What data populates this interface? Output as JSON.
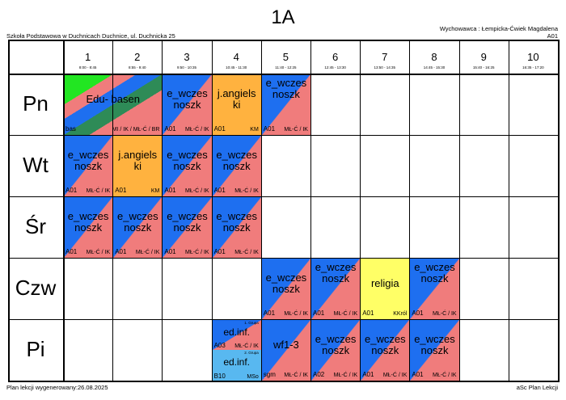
{
  "header": {
    "class_name": "1A",
    "school": "Szkoła Podstawowa w Duchnicach Duchnice, ul. Duchnicka 25",
    "teacher": "Wychowawca : Łempicka-Ćwiek Magdalena",
    "room": "A01"
  },
  "periods": [
    {
      "num": "1",
      "time": "8:00 - 8:45"
    },
    {
      "num": "2",
      "time": "8:55 - 9:40"
    },
    {
      "num": "3",
      "time": "9:50 - 10:35"
    },
    {
      "num": "4",
      "time": "10:45 - 11:30"
    },
    {
      "num": "5",
      "time": "11:40 - 12:25"
    },
    {
      "num": "6",
      "time": "12:45 - 13:30"
    },
    {
      "num": "7",
      "time": "13:50 - 14:35"
    },
    {
      "num": "8",
      "time": "14:45 - 15:30"
    },
    {
      "num": "9",
      "time": "15:40 - 16:25"
    },
    {
      "num": "10",
      "time": "16:35 - 17:20"
    }
  ],
  "days": [
    "Pn",
    "Wt",
    "Śr",
    "Czw",
    "Pi"
  ],
  "lessons": [
    {
      "day": 0,
      "period": 0,
      "span": 2,
      "subject": [
        "Edu- basen"
      ],
      "room": "bas",
      "teacher": "MI / IK / MŁ-Ć / BR",
      "style": "basen"
    },
    {
      "day": 0,
      "period": 2,
      "span": 1,
      "subject": [
        "e_wczes",
        "noszk"
      ],
      "room": "A01",
      "teacher": "MŁ-Ć / IK",
      "style": "ew"
    },
    {
      "day": 0,
      "period": 3,
      "span": 1,
      "subject": [
        "j.angiels",
        "ki"
      ],
      "room": "A01",
      "teacher": "KM",
      "style": "ang"
    },
    {
      "day": 0,
      "period": 4,
      "span": 1,
      "subject": [
        "e_wczes",
        "noszk"
      ],
      "room": "A01",
      "teacher": "MŁ-Ć / IK",
      "style": "ew",
      "top": true
    },
    {
      "day": 1,
      "period": 0,
      "span": 1,
      "subject": [
        "e_wczes",
        "noszk"
      ],
      "room": "A01",
      "teacher": "MŁ-Ć / IK",
      "style": "ew"
    },
    {
      "day": 1,
      "period": 1,
      "span": 1,
      "subject": [
        "j.angiels",
        "ki"
      ],
      "room": "A01",
      "teacher": "KM",
      "style": "ang"
    },
    {
      "day": 1,
      "period": 2,
      "span": 1,
      "subject": [
        "e_wczes",
        "noszk"
      ],
      "room": "A01",
      "teacher": "MŁ-Ć / IK",
      "style": "ew"
    },
    {
      "day": 1,
      "period": 3,
      "span": 1,
      "subject": [
        "e_wczes",
        "noszk"
      ],
      "room": "A01",
      "teacher": "MŁ-Ć / IK",
      "style": "ew"
    },
    {
      "day": 2,
      "period": 0,
      "span": 1,
      "subject": [
        "e_wczes",
        "noszk"
      ],
      "room": "A01",
      "teacher": "MŁ-Ć / IK",
      "style": "ew"
    },
    {
      "day": 2,
      "period": 1,
      "span": 1,
      "subject": [
        "e_wczes",
        "noszk"
      ],
      "room": "A01",
      "teacher": "MŁ-Ć / IK",
      "style": "ew"
    },
    {
      "day": 2,
      "period": 2,
      "span": 1,
      "subject": [
        "e_wczes",
        "noszk"
      ],
      "room": "A01",
      "teacher": "MŁ-Ć / IK",
      "style": "ew"
    },
    {
      "day": 2,
      "period": 3,
      "span": 1,
      "subject": [
        "e_wczes",
        "noszk"
      ],
      "room": "A01",
      "teacher": "MŁ-Ć / IK",
      "style": "ew"
    },
    {
      "day": 3,
      "period": 4,
      "span": 1,
      "subject": [
        "e_wczes",
        "noszk"
      ],
      "room": "A01",
      "teacher": "MŁ-Ć / IK",
      "style": "ew"
    },
    {
      "day": 3,
      "period": 5,
      "span": 1,
      "subject": [
        "e_wczes",
        "noszk"
      ],
      "room": "A01",
      "teacher": "MŁ-Ć / IK",
      "style": "ew",
      "top": true
    },
    {
      "day": 3,
      "period": 6,
      "span": 1,
      "subject": [
        "religia"
      ],
      "room": "A01",
      "teacher": "KKról",
      "style": "rel"
    },
    {
      "day": 3,
      "period": 7,
      "span": 1,
      "subject": [
        "e_wczes",
        "noszk"
      ],
      "room": "A01",
      "teacher": "MŁ-Ć / IK",
      "style": "ew",
      "top": true
    },
    {
      "day": 4,
      "period": 3,
      "span": 1,
      "subject": [
        "ed.inf."
      ],
      "room": "A03",
      "teacher": "MŁ-Ć / IK",
      "style": "inf1",
      "half": "top",
      "group": "1. Grupa"
    },
    {
      "day": 4,
      "period": 3,
      "span": 1,
      "subject": [
        "ed.inf."
      ],
      "room": "B10",
      "teacher": "MSo",
      "style": "inf2",
      "half": "bottom",
      "group": "2. Grupa"
    },
    {
      "day": 4,
      "period": 4,
      "span": 1,
      "subject": [
        "wf1-3"
      ],
      "room": "sgm",
      "teacher": "MŁ-Ć / IK",
      "style": "ew"
    },
    {
      "day": 4,
      "period": 5,
      "span": 1,
      "subject": [
        "e_wczes",
        "noszk"
      ],
      "room": "A02",
      "teacher": "MŁ-Ć / IK",
      "style": "ew"
    },
    {
      "day": 4,
      "period": 6,
      "span": 1,
      "subject": [
        "e_wczes",
        "noszk"
      ],
      "room": "A01",
      "teacher": "MŁ-Ć / IK",
      "style": "ew"
    },
    {
      "day": 4,
      "period": 7,
      "span": 1,
      "subject": [
        "e_wczes",
        "noszk"
      ],
      "room": "A01",
      "teacher": "MŁ-Ć / IK",
      "style": "ew"
    }
  ],
  "colors": {
    "blue": "#1e6ff0",
    "pink": "#f07c7c",
    "orange": "#ffb23f",
    "green_bright": "#22e622",
    "green_dark": "#2e8b57",
    "yellow": "#ffff66",
    "light_blue": "#58b8f0"
  },
  "footer": {
    "generated": "Plan lekcji wygenerowany:26.08.2025",
    "app": "aSc Plan Lekcji"
  }
}
